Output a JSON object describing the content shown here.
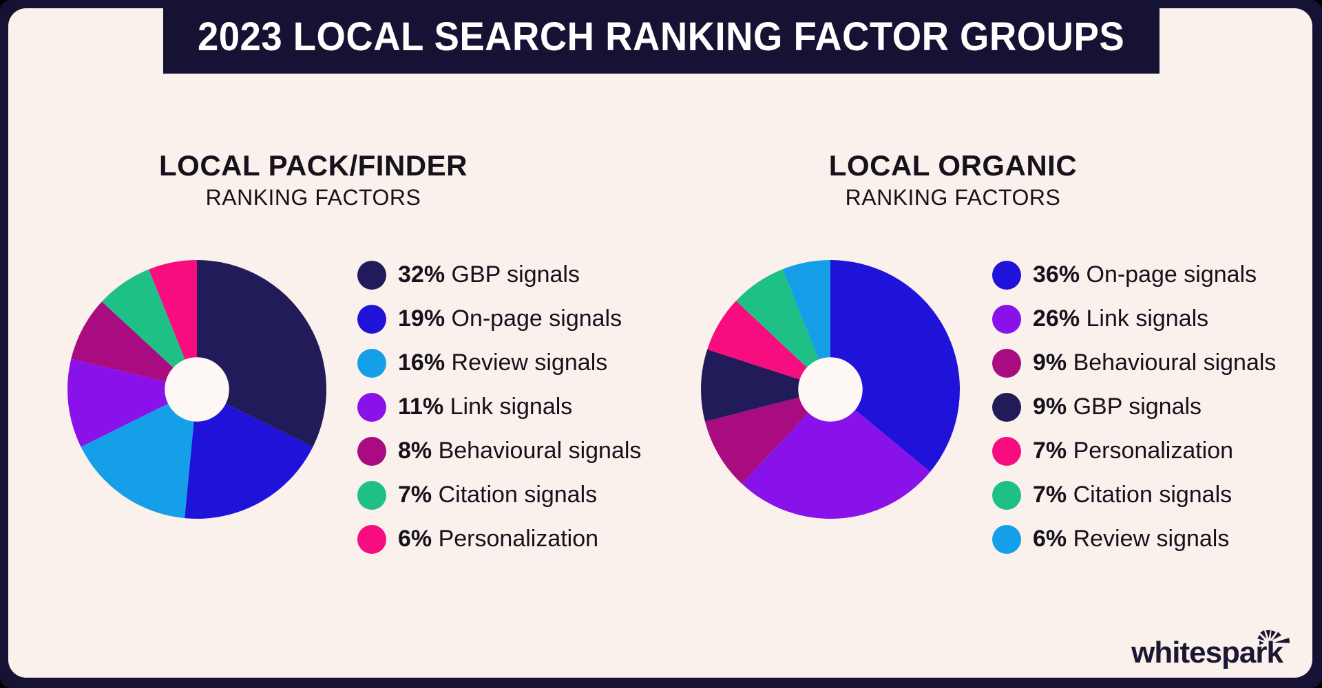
{
  "header": {
    "title": "2023 LOCAL SEARCH RANKING FACTOR GROUPS"
  },
  "brand": {
    "wordmark": "whitespark",
    "icon": "spark-burst-icon"
  },
  "colors": {
    "background": "#000000",
    "frame_navy": "#161233",
    "card_cream": "#faf0ec",
    "donut_hole": "#fdf8f5",
    "title_text": "#ffffff",
    "body_text": "#15121c",
    "logo_text": "#1c1733",
    "navy": "#211b59",
    "blue": "#1f13da",
    "light_blue": "#149fe8",
    "purple": "#8911e9",
    "magenta": "#a80c80",
    "green": "#1fc086",
    "pink": "#f70d7f"
  },
  "chart_data": [
    {
      "type": "pie",
      "variant": "donut",
      "title": "LOCAL PACK/FINDER",
      "subtitle": "RANKING FACTORS",
      "units": "%",
      "start_angle_deg": -90,
      "direction": "clockwise",
      "legend_position": "right",
      "slices": [
        {
          "label": "GBP signals",
          "value_pct": 32,
          "color": "#211b59"
        },
        {
          "label": "On-page signals",
          "value_pct": 19,
          "color": "#1f13da"
        },
        {
          "label": "Review signals",
          "value_pct": 16,
          "color": "#149fe8"
        },
        {
          "label": "Link signals",
          "value_pct": 11,
          "color": "#8911e9"
        },
        {
          "label": "Behavioural signals",
          "value_pct": 8,
          "color": "#a80c80"
        },
        {
          "label": "Citation signals",
          "value_pct": 7,
          "color": "#1fc086"
        },
        {
          "label": "Personalization",
          "value_pct": 6,
          "color": "#f70d7f"
        }
      ]
    },
    {
      "type": "pie",
      "variant": "donut",
      "title": "LOCAL ORGANIC",
      "subtitle": "RANKING FACTORS",
      "units": "%",
      "start_angle_deg": -90,
      "direction": "clockwise",
      "legend_position": "right",
      "slices": [
        {
          "label": "On-page signals",
          "value_pct": 36,
          "color": "#1f13da"
        },
        {
          "label": "Link signals",
          "value_pct": 26,
          "color": "#8911e9"
        },
        {
          "label": "Behavioural signals",
          "value_pct": 9,
          "color": "#a80c80"
        },
        {
          "label": "GBP signals",
          "value_pct": 9,
          "color": "#211b59"
        },
        {
          "label": "Personalization",
          "value_pct": 7,
          "color": "#f70d7f"
        },
        {
          "label": "Citation signals",
          "value_pct": 7,
          "color": "#1fc086"
        },
        {
          "label": "Review signals",
          "value_pct": 6,
          "color": "#149fe8"
        }
      ]
    }
  ]
}
